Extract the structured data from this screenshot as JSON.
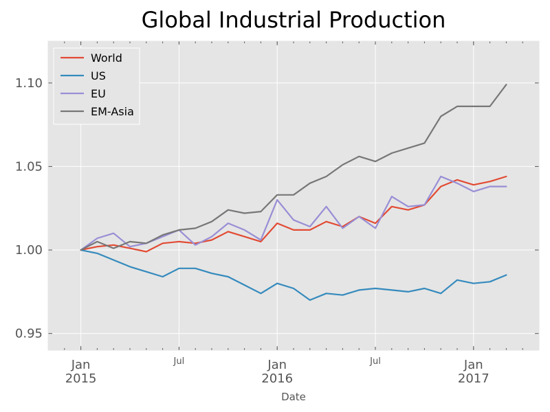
{
  "chart_data": {
    "type": "line",
    "title": "Global Industrial Production",
    "xlabel": "Date",
    "ylabel": "",
    "x": [
      "2015-01",
      "2015-02",
      "2015-03",
      "2015-04",
      "2015-05",
      "2015-06",
      "2015-07",
      "2015-08",
      "2015-09",
      "2015-10",
      "2015-11",
      "2015-12",
      "2016-01",
      "2016-02",
      "2016-03",
      "2016-04",
      "2016-05",
      "2016-06",
      "2016-07",
      "2016-08",
      "2016-09",
      "2016-10",
      "2016-11",
      "2016-12",
      "2017-01",
      "2017-02",
      "2017-03"
    ],
    "xlim": [
      "2014-11",
      "2017-05"
    ],
    "ylim": [
      0.94,
      1.125
    ],
    "yticks": [
      0.95,
      1.0,
      1.05,
      1.1
    ],
    "ytick_labels": [
      "0.95",
      "1.00",
      "1.05",
      "1.10"
    ],
    "xticks_major": [
      {
        "date": "2015-01",
        "month": "Jan",
        "year": "2015"
      },
      {
        "date": "2016-01",
        "month": "Jan",
        "year": "2016"
      },
      {
        "date": "2017-01",
        "month": "Jan",
        "year": "2017"
      }
    ],
    "xticks_mid": [
      {
        "date": "2015-07",
        "label": "Jul"
      },
      {
        "date": "2016-07",
        "label": "Jul"
      }
    ],
    "grid": true,
    "legend_position": "top-left",
    "series": [
      {
        "name": "World",
        "color": "#E24A33",
        "values": [
          1.0,
          1.002,
          1.003,
          1.001,
          0.999,
          1.004,
          1.005,
          1.004,
          1.006,
          1.011,
          1.008,
          1.005,
          1.016,
          1.012,
          1.012,
          1.017,
          1.014,
          1.02,
          1.016,
          1.026,
          1.024,
          1.027,
          1.038,
          1.042,
          1.039,
          1.041,
          1.044
        ]
      },
      {
        "name": "US",
        "color": "#348ABD",
        "values": [
          1.0,
          0.998,
          0.994,
          0.99,
          0.987,
          0.984,
          0.989,
          0.989,
          0.986,
          0.984,
          0.979,
          0.974,
          0.98,
          0.977,
          0.97,
          0.974,
          0.973,
          0.976,
          0.977,
          0.976,
          0.975,
          0.977,
          0.974,
          0.982,
          0.98,
          0.981,
          0.985
        ]
      },
      {
        "name": "EU",
        "color": "#988ED5",
        "values": [
          1.0,
          1.007,
          1.01,
          1.002,
          1.004,
          1.008,
          1.012,
          1.003,
          1.008,
          1.016,
          1.012,
          1.006,
          1.03,
          1.018,
          1.014,
          1.026,
          1.013,
          1.02,
          1.013,
          1.032,
          1.026,
          1.027,
          1.044,
          1.04,
          1.035,
          1.038,
          1.038
        ]
      },
      {
        "name": "EM-Asia",
        "color": "#777777",
        "values": [
          1.0,
          1.005,
          1.001,
          1.005,
          1.004,
          1.009,
          1.012,
          1.013,
          1.017,
          1.024,
          1.022,
          1.023,
          1.033,
          1.033,
          1.04,
          1.044,
          1.051,
          1.056,
          1.053,
          1.058,
          1.061,
          1.064,
          1.08,
          1.086,
          1.086,
          1.086,
          1.099
        ]
      }
    ]
  }
}
